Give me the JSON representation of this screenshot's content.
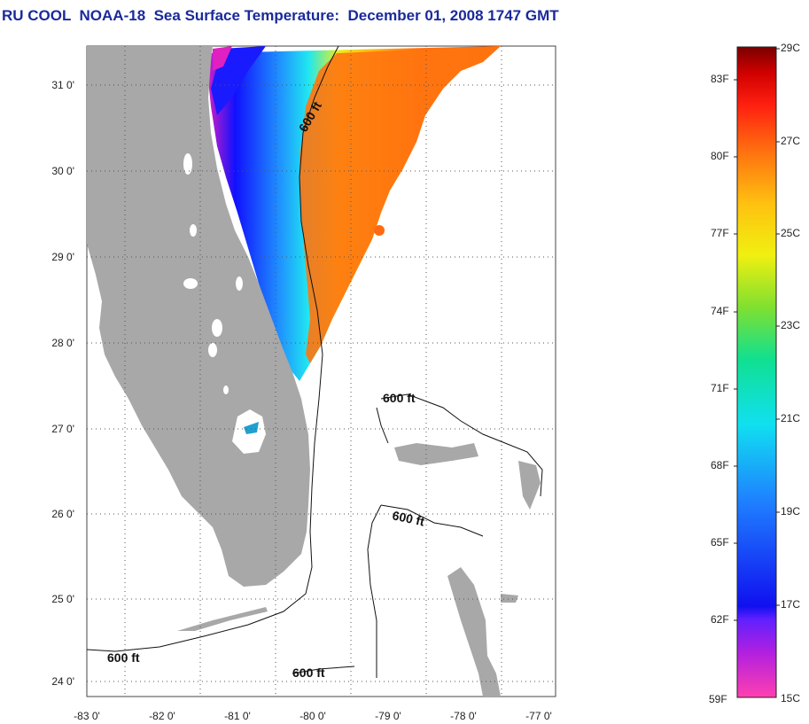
{
  "title": "RU COOL  NOAA-18  Sea Surface Temperature:  December 01, 2008 1747 GMT",
  "chart_data": {
    "type": "heatmap",
    "xlim": [
      -83.0,
      -76.85
    ],
    "ylim": [
      23.8,
      31.45
    ],
    "x_ticks": [
      "-83 0'",
      "-82 0'",
      "-81 0'",
      "-80 0'",
      "-79 0'",
      "-78 0'",
      "-77 0'"
    ],
    "y_ticks": [
      "24 0'",
      "25 0'",
      "26 0'",
      "27 0'",
      "28 0'",
      "29 0'",
      "30 0'",
      "31 0'"
    ],
    "grid": true,
    "colorbar_fahrenheit": [
      "83F",
      "80F",
      "77F",
      "74F",
      "71F",
      "68F",
      "65F",
      "62F",
      "59F"
    ],
    "colorbar_celsius": [
      "29C",
      "27C",
      "25C",
      "23C",
      "21C",
      "19C",
      "17C",
      "15C"
    ],
    "contour_labels": [
      "600 ft",
      "600 ft",
      "600 ft",
      "600 ft",
      "600 ft"
    ]
  },
  "colors": {
    "land": "#a8a8a8",
    "title": "#1a2a9a",
    "warm": "#ff7a10",
    "cool": "#1040ff"
  }
}
